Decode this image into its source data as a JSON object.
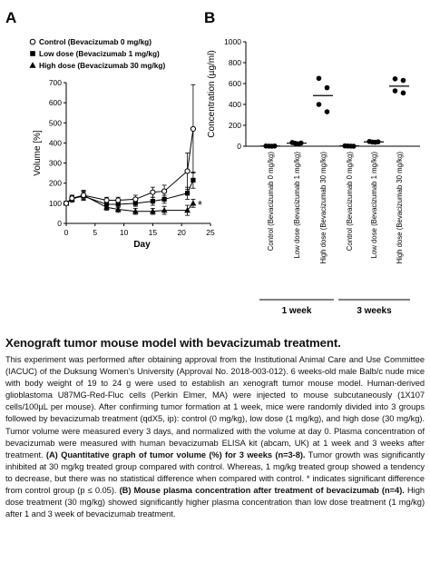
{
  "chart_data": [
    {
      "panel": "A",
      "type": "line",
      "xlabel": "Day",
      "ylabel": "Volume [%]",
      "xlim": [
        0,
        25
      ],
      "ylim": [
        0,
        700
      ],
      "xticks": [
        0,
        5,
        10,
        15,
        20,
        25
      ],
      "yticks": [
        0,
        100,
        200,
        300,
        400,
        500,
        600,
        700
      ],
      "grid": false,
      "legend_position": "top-left",
      "x": [
        0,
        1,
        3,
        7,
        9,
        12,
        15,
        17,
        21,
        22
      ],
      "series": [
        {
          "name": "Control (Bevacizumab 0 mg/kg)",
          "marker": "open-circle",
          "values": [
            100,
            125,
            140,
            115,
            115,
            120,
            155,
            160,
            260,
            470
          ],
          "errors": [
            10,
            15,
            25,
            15,
            15,
            20,
            25,
            30,
            90,
            220
          ]
        },
        {
          "name": "Low dose (Bevacizumab 1 mg/kg)",
          "marker": "filled-square",
          "values": [
            100,
            125,
            135,
            95,
            95,
            100,
            110,
            120,
            150,
            215
          ],
          "errors": [
            10,
            15,
            20,
            15,
            15,
            15,
            20,
            20,
            30,
            40
          ]
        },
        {
          "name": "High dose (Bevacizumab 30 mg/kg)",
          "marker": "filled-triangle",
          "values": [
            100,
            120,
            140,
            80,
            70,
            60,
            60,
            65,
            65,
            100
          ],
          "errors": [
            10,
            15,
            20,
            15,
            15,
            15,
            15,
            20,
            25,
            20
          ]
        }
      ],
      "annotations": [
        {
          "text": "*",
          "x": 22,
          "y": 100
        }
      ]
    },
    {
      "panel": "B",
      "type": "scatter",
      "ylabel": "Concentration (µg/ml)",
      "ylim": [
        0,
        1000
      ],
      "yticks": [
        0,
        200,
        400,
        600,
        800,
        1000
      ],
      "grid": false,
      "categories": [
        "Control (Bevacizumab 0 mg/kg)",
        "Low dose (Bevacizumab 1 mg/kg)",
        "High dose (Bevacizumab 30 mg/kg)",
        "Control (Bevacizumab 0 mg/kg)",
        "Low dose (Bevacizumab 1 mg/kg)",
        "High dose (Bevacizumab 30 mg/kg)"
      ],
      "groups": [
        {
          "label": "1 week",
          "categories": [
            0,
            1,
            2
          ]
        },
        {
          "label": "3 weeks",
          "categories": [
            3,
            4,
            5
          ]
        }
      ],
      "points": [
        [
          2,
          1,
          0,
          2
        ],
        [
          35,
          28,
          22,
          30
        ],
        [
          650,
          560,
          400,
          330
        ],
        [
          3,
          2,
          1,
          0
        ],
        [
          45,
          40,
          38,
          42
        ],
        [
          645,
          630,
          530,
          510
        ]
      ],
      "means": [
        1,
        29,
        485,
        2,
        41,
        575
      ]
    }
  ],
  "panel_labels": [
    "A",
    "B"
  ],
  "caption": {
    "title": "Xenograft tumor mouse model with bevacizumab treatment.",
    "body_1": "This experiment was performed after obtaining approval from the Institutional Animal Care and Use Committee (IACUC) of the Duksung Women’s University (Approval No. 2018-003-012). 6 weeks-old male Balb/c nude mice with body weight of 19 to 24 g were used to establish an xenograft tumor mouse model. Human-derived glioblastoma U87MG-Red-Fluc cells (Perkin Elmer, MA) were injected to mouse subcutaneously (1X107  cells/100µL per mouse). After confirming tumor formation at 1 week, mice were randomly divided into 3 groups followed by bevacizumab treatment (qdX5, ip): control (0 mg/kg), low dose (1 mg/kg), and high dose (30 mg/kg). Tumor volume were measured every 3 days, and normalized with the volume at day 0. Plasma concentration of bevacizumab were measured with human bevacizumab ELISA kit (abcam, UK) at 1 week and 3 weeks after treatment. ",
    "bold_a": "(A) Quantitative graph of tumor volume (%) for 3 weeks (n=3-8).",
    "body_2": " Tumor growth was significantly inhibited at 30 mg/kg treated group compared with control. Whereas, 1 mg/kg treated group showed a tendency to decrease, but there was no statistical  difference when compared with control. * indicates significant difference from control group (p ≤ 0.05). ",
    "bold_b": "(B) Mouse plasma concentration after treatment of bevacizumab (n=4).",
    "body_3": " High dose treatment (30 mg/kg) showed significantly higher plasma concentration than low dose treatment (1 mg/kg) after 1 and 3 week of bevacizumab treatment."
  }
}
